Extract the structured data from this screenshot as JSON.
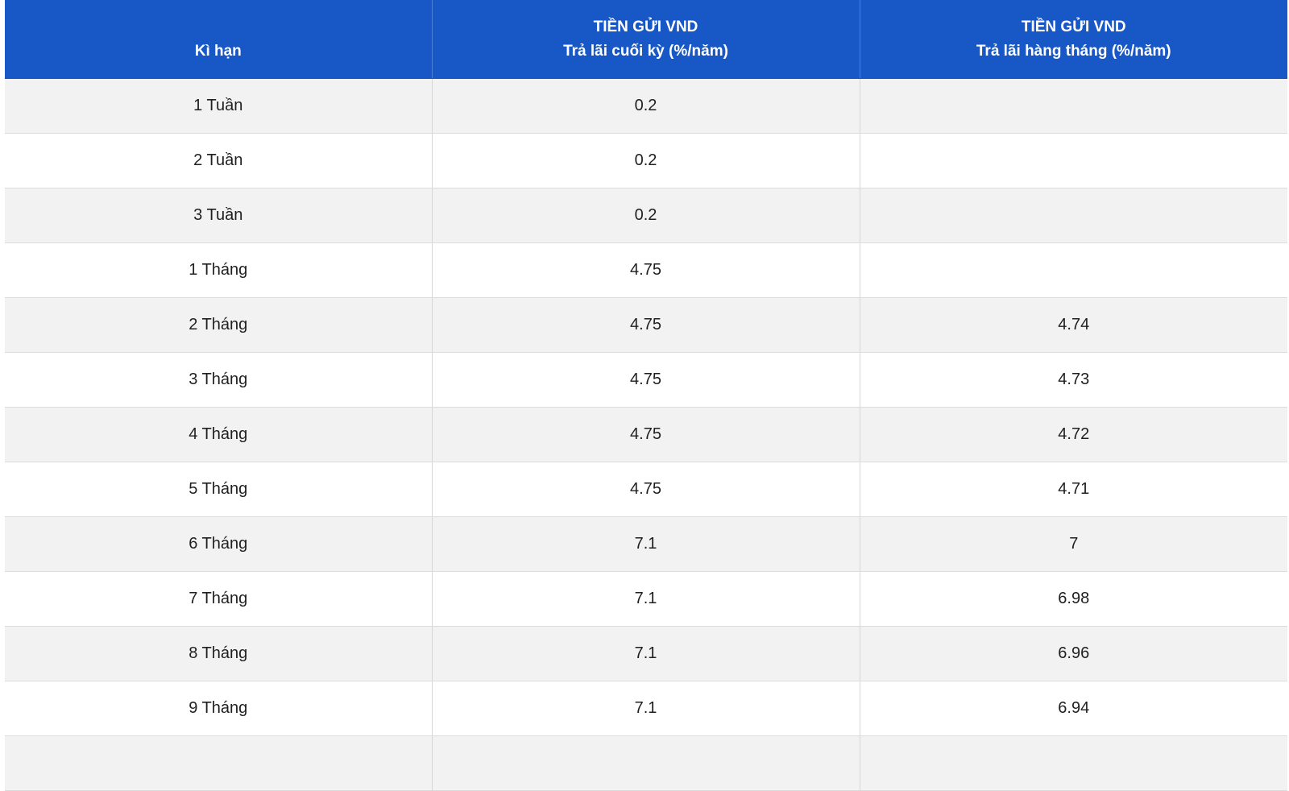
{
  "table": {
    "headers": [
      {
        "line1": "",
        "line2": "Kì hạn"
      },
      {
        "line1": "TIỀN GỬI VND",
        "line2": "Trả lãi cuối kỳ (%/năm)"
      },
      {
        "line1": "TIỀN GỬI VND",
        "line2": "Trả lãi hàng tháng (%/năm)"
      }
    ],
    "rows": [
      {
        "term": "1 Tuần",
        "end_of_term": "0.2",
        "monthly": ""
      },
      {
        "term": "2 Tuần",
        "end_of_term": "0.2",
        "monthly": ""
      },
      {
        "term": "3 Tuần",
        "end_of_term": "0.2",
        "monthly": ""
      },
      {
        "term": "1 Tháng",
        "end_of_term": "4.75",
        "monthly": ""
      },
      {
        "term": "2 Tháng",
        "end_of_term": "4.75",
        "monthly": "4.74"
      },
      {
        "term": "3 Tháng",
        "end_of_term": "4.75",
        "monthly": "4.73"
      },
      {
        "term": "4 Tháng",
        "end_of_term": "4.75",
        "monthly": "4.72"
      },
      {
        "term": "5 Tháng",
        "end_of_term": "4.75",
        "monthly": "4.71"
      },
      {
        "term": "6 Tháng",
        "end_of_term": "7.1",
        "monthly": "7"
      },
      {
        "term": "7 Tháng",
        "end_of_term": "7.1",
        "monthly": "6.98"
      },
      {
        "term": "8 Tháng",
        "end_of_term": "7.1",
        "monthly": "6.96"
      },
      {
        "term": "9 Tháng",
        "end_of_term": "7.1",
        "monthly": "6.94"
      },
      {
        "term": "",
        "end_of_term": "",
        "monthly": ""
      }
    ]
  },
  "colors": {
    "header_bg": "#1858c6",
    "header_text": "#ffffff",
    "row_alt_bg": "#f2f2f2",
    "row_bg": "#ffffff"
  }
}
